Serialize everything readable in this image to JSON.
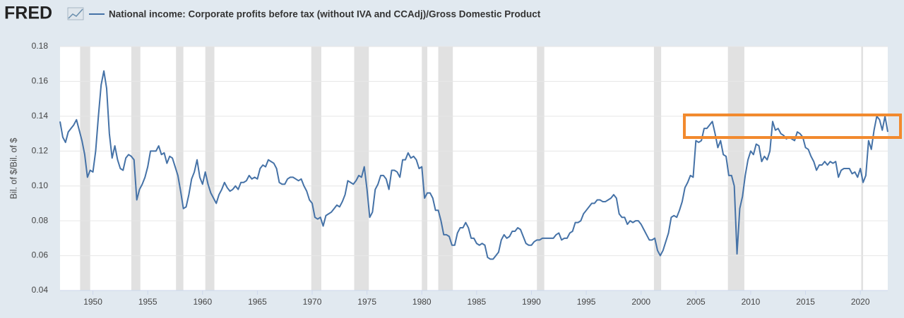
{
  "chart_data": {
    "type": "line",
    "source_logo": "FRED",
    "y_label": "Bil. of $/Bil. of $",
    "xlim": [
      1947,
      2022.5
    ],
    "xticks": [
      1950,
      1955,
      1960,
      1965,
      1970,
      1975,
      1980,
      1985,
      1990,
      1995,
      2000,
      2005,
      2010,
      2015,
      2020
    ],
    "ylim": [
      0.04,
      0.18
    ],
    "yticks": [
      0.04,
      0.06,
      0.08,
      {
        "value": 0.1,
        "label": "0.10"
      },
      0.12,
      0.14,
      0.16,
      0.18
    ],
    "grid": true,
    "recession_color": "#e1e1e1",
    "recessions": [
      [
        1948.83,
        1949.75
      ],
      [
        1953.5,
        1954.33
      ],
      [
        1957.58,
        1958.25
      ],
      [
        1960.25,
        1961.08
      ],
      [
        1969.92,
        1970.83
      ],
      [
        1973.83,
        1975.17
      ],
      [
        1980.0,
        1980.5
      ],
      [
        1981.5,
        1982.83
      ],
      [
        1990.5,
        1991.17
      ],
      [
        2001.17,
        2001.83
      ],
      [
        2007.92,
        2009.42
      ],
      [
        2020.08,
        2020.25
      ]
    ],
    "x": [
      1947,
      1947.25,
      1947.5,
      1947.75,
      1948,
      1948.25,
      1948.5,
      1948.75,
      1949,
      1949.25,
      1949.5,
      1949.75,
      1950,
      1950.25,
      1950.5,
      1950.75,
      1951,
      1951.25,
      1951.5,
      1951.75,
      1952,
      1952.25,
      1952.5,
      1952.75,
      1953,
      1953.25,
      1953.5,
      1953.75,
      1954,
      1954.25,
      1954.5,
      1954.75,
      1955,
      1955.25,
      1955.5,
      1955.75,
      1956,
      1956.25,
      1956.5,
      1956.75,
      1957,
      1957.25,
      1957.5,
      1957.75,
      1958,
      1958.25,
      1958.5,
      1958.75,
      1959,
      1959.25,
      1959.5,
      1959.75,
      1960,
      1960.25,
      1960.5,
      1960.75,
      1961,
      1961.25,
      1961.5,
      1961.75,
      1962,
      1962.25,
      1962.5,
      1962.75,
      1963,
      1963.25,
      1963.5,
      1963.75,
      1964,
      1964.25,
      1964.5,
      1964.75,
      1965,
      1965.25,
      1965.5,
      1965.75,
      1966,
      1966.25,
      1966.5,
      1966.75,
      1967,
      1967.25,
      1967.5,
      1967.75,
      1968,
      1968.25,
      1968.5,
      1968.75,
      1969,
      1969.25,
      1969.5,
      1969.75,
      1970,
      1970.25,
      1970.5,
      1970.75,
      1971,
      1971.25,
      1971.5,
      1971.75,
      1972,
      1972.25,
      1972.5,
      1972.75,
      1973,
      1973.25,
      1973.5,
      1973.75,
      1974,
      1974.25,
      1974.5,
      1974.75,
      1975,
      1975.25,
      1975.5,
      1975.75,
      1976,
      1976.25,
      1976.5,
      1976.75,
      1977,
      1977.25,
      1977.5,
      1977.75,
      1978,
      1978.25,
      1978.5,
      1978.75,
      1979,
      1979.25,
      1979.5,
      1979.75,
      1980,
      1980.25,
      1980.5,
      1980.75,
      1981,
      1981.25,
      1981.5,
      1981.75,
      1982,
      1982.25,
      1982.5,
      1982.75,
      1983,
      1983.25,
      1983.5,
      1983.75,
      1984,
      1984.25,
      1984.5,
      1984.75,
      1985,
      1985.25,
      1985.5,
      1985.75,
      1986,
      1986.25,
      1986.5,
      1986.75,
      1987,
      1987.25,
      1987.5,
      1987.75,
      1988,
      1988.25,
      1988.5,
      1988.75,
      1989,
      1989.25,
      1989.5,
      1989.75,
      1990,
      1990.25,
      1990.5,
      1990.75,
      1991,
      1991.25,
      1991.5,
      1991.75,
      1992,
      1992.25,
      1992.5,
      1992.75,
      1993,
      1993.25,
      1993.5,
      1993.75,
      1994,
      1994.25,
      1994.5,
      1994.75,
      1995,
      1995.25,
      1995.5,
      1995.75,
      1996,
      1996.25,
      1996.5,
      1996.75,
      1997,
      1997.25,
      1997.5,
      1997.75,
      1998,
      1998.25,
      1998.5,
      1998.75,
      1999,
      1999.25,
      1999.5,
      1999.75,
      2000,
      2000.25,
      2000.5,
      2000.75,
      2001,
      2001.25,
      2001.5,
      2001.75,
      2002,
      2002.25,
      2002.5,
      2002.75,
      2003,
      2003.25,
      2003.5,
      2003.75,
      2004,
      2004.25,
      2004.5,
      2004.75,
      2005,
      2005.25,
      2005.5,
      2005.75,
      2006,
      2006.25,
      2006.5,
      2006.75,
      2007,
      2007.25,
      2007.5,
      2007.75,
      2008,
      2008.25,
      2008.5,
      2008.75,
      2009,
      2009.25,
      2009.5,
      2009.75,
      2010,
      2010.25,
      2010.5,
      2010.75,
      2011,
      2011.25,
      2011.5,
      2011.75,
      2012,
      2012.25,
      2012.5,
      2012.75,
      2013,
      2013.25,
      2013.5,
      2013.75,
      2014,
      2014.25,
      2014.5,
      2014.75,
      2015,
      2015.25,
      2015.5,
      2015.75,
      2016,
      2016.25,
      2016.5,
      2016.75,
      2017,
      2017.25,
      2017.5,
      2017.75,
      2018,
      2018.25,
      2018.5,
      2018.75,
      2019,
      2019.25,
      2019.5,
      2019.75,
      2020,
      2020.25,
      2020.5,
      2020.75,
      2021,
      2021.25,
      2021.5,
      2021.75,
      2022,
      2022.25,
      2022.5
    ],
    "series": [
      {
        "name": "National income: Corporate profits before tax (without IVA and CCAdj)/Gross Domestic Product",
        "color": "#4572a7",
        "values": [
          0.137,
          0.128,
          0.125,
          0.131,
          0.133,
          0.135,
          0.138,
          0.132,
          0.126,
          0.118,
          0.105,
          0.109,
          0.108,
          0.12,
          0.14,
          0.158,
          0.166,
          0.156,
          0.13,
          0.116,
          0.123,
          0.115,
          0.11,
          0.109,
          0.116,
          0.118,
          0.117,
          0.115,
          0.092,
          0.098,
          0.101,
          0.105,
          0.111,
          0.12,
          0.12,
          0.12,
          0.123,
          0.118,
          0.119,
          0.113,
          0.117,
          0.116,
          0.111,
          0.106,
          0.097,
          0.087,
          0.088,
          0.095,
          0.104,
          0.108,
          0.115,
          0.105,
          0.101,
          0.108,
          0.101,
          0.096,
          0.093,
          0.09,
          0.095,
          0.098,
          0.102,
          0.099,
          0.097,
          0.098,
          0.1,
          0.098,
          0.102,
          0.102,
          0.103,
          0.106,
          0.104,
          0.105,
          0.104,
          0.11,
          0.112,
          0.111,
          0.115,
          0.114,
          0.113,
          0.11,
          0.102,
          0.101,
          0.101,
          0.104,
          0.105,
          0.105,
          0.104,
          0.103,
          0.104,
          0.1,
          0.097,
          0.092,
          0.09,
          0.082,
          0.081,
          0.082,
          0.077,
          0.083,
          0.084,
          0.085,
          0.087,
          0.089,
          0.088,
          0.091,
          0.095,
          0.103,
          0.102,
          0.101,
          0.103,
          0.106,
          0.105,
          0.111,
          0.098,
          0.082,
          0.085,
          0.098,
          0.101,
          0.106,
          0.106,
          0.104,
          0.098,
          0.109,
          0.109,
          0.108,
          0.105,
          0.115,
          0.115,
          0.119,
          0.116,
          0.117,
          0.115,
          0.11,
          0.111,
          0.093,
          0.096,
          0.096,
          0.093,
          0.086,
          0.086,
          0.08,
          0.072,
          0.072,
          0.071,
          0.066,
          0.066,
          0.073,
          0.076,
          0.076,
          0.079,
          0.076,
          0.07,
          0.07,
          0.067,
          0.066,
          0.067,
          0.066,
          0.059,
          0.058,
          0.058,
          0.06,
          0.062,
          0.069,
          0.072,
          0.07,
          0.071,
          0.074,
          0.074,
          0.076,
          0.075,
          0.071,
          0.067,
          0.066,
          0.066,
          0.068,
          0.069,
          0.069,
          0.07,
          0.07,
          0.07,
          0.07,
          0.07,
          0.072,
          0.073,
          0.069,
          0.07,
          0.07,
          0.073,
          0.074,
          0.079,
          0.079,
          0.08,
          0.084,
          0.086,
          0.088,
          0.09,
          0.09,
          0.092,
          0.092,
          0.091,
          0.091,
          0.092,
          0.093,
          0.095,
          0.093,
          0.084,
          0.082,
          0.082,
          0.078,
          0.08,
          0.079,
          0.08,
          0.08,
          0.078,
          0.075,
          0.072,
          0.069,
          0.069,
          0.07,
          0.063,
          0.06,
          0.063,
          0.068,
          0.073,
          0.082,
          0.083,
          0.082,
          0.086,
          0.091,
          0.099,
          0.102,
          0.106,
          0.105,
          0.126,
          0.125,
          0.126,
          0.133,
          0.133,
          0.135,
          0.137,
          0.13,
          0.122,
          0.126,
          0.118,
          0.117,
          0.106,
          0.106,
          0.1,
          0.061,
          0.087,
          0.094,
          0.106,
          0.115,
          0.12,
          0.118,
          0.124,
          0.123,
          0.114,
          0.117,
          0.115,
          0.12,
          0.137,
          0.132,
          0.133,
          0.13,
          0.129,
          0.127,
          0.128,
          0.127,
          0.126,
          0.131,
          0.13,
          0.128,
          0.122,
          0.121,
          0.117,
          0.114,
          0.109,
          0.112,
          0.112,
          0.114,
          0.112,
          0.114,
          0.113,
          0.114,
          0.105,
          0.109,
          0.11,
          0.11,
          0.11,
          0.107,
          0.108,
          0.105,
          0.11,
          0.102,
          0.106,
          0.126,
          0.121,
          0.132,
          0.14,
          0.138,
          0.132,
          0.14,
          0.131
        ]
      }
    ]
  }
}
